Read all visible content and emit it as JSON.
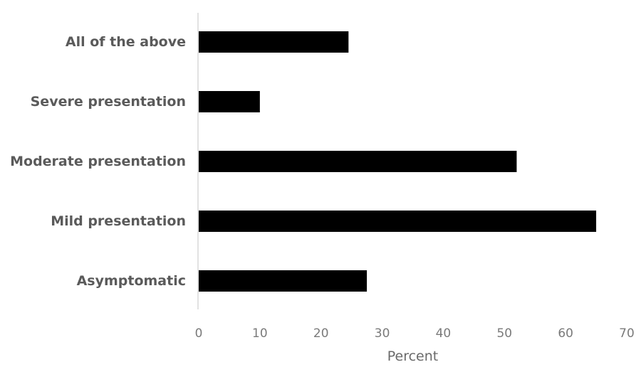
{
  "chart_data": {
    "type": "bar",
    "orientation": "horizontal",
    "title": "",
    "xlabel": "Percent",
    "ylabel": "",
    "categories": [
      "All of the above",
      "Severe presentation",
      "Moderate presentation",
      "Mild presentation",
      "Asymptomatic"
    ],
    "values": [
      24.5,
      10,
      52,
      65,
      27.5
    ],
    "xlim": [
      0,
      70
    ],
    "xticks": [
      "0",
      "10",
      "20",
      "30",
      "40",
      "50",
      "60",
      "70"
    ],
    "grid": false,
    "legend": "none",
    "bar_color": "#000000",
    "axis_color": "#d9d9d9"
  }
}
